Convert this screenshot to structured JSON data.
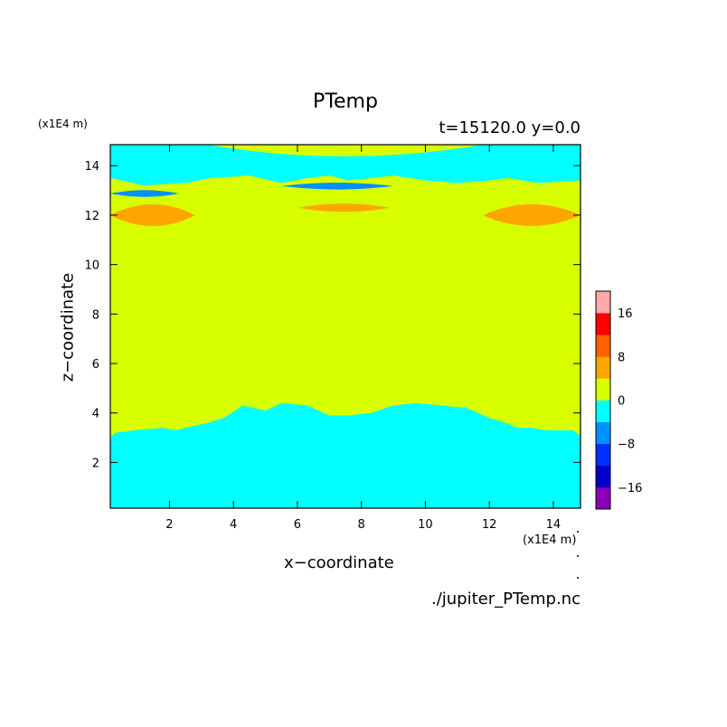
{
  "header": {
    "title": "PTemp",
    "subtitle": "t=15120.0 y=0.0",
    "source": "./jupiter_PTemp.nc"
  },
  "axes": {
    "xlabel": "x−coordinate",
    "ylabel": "z−coordinate",
    "xunit": "(x1E4 m)",
    "yunit": "(x1E4 m)"
  },
  "chart_data": {
    "type": "heatmap",
    "title": "PTemp",
    "subtitle": "t=15120.0 y=0.0",
    "xlabel": "x−coordinate",
    "ylabel": "z−coordinate",
    "xlim": [
      0.15,
      14.85
    ],
    "ylim": [
      0.15,
      14.85
    ],
    "xticks": [
      2,
      4,
      6,
      8,
      10,
      12,
      14
    ],
    "yticks": [
      2,
      4,
      6,
      8,
      10,
      12,
      14
    ],
    "colorbar": {
      "levels": [
        -20,
        -16,
        -12,
        -8,
        -4,
        0,
        4,
        8,
        12,
        16,
        20
      ],
      "tick_labels": [
        "-16",
        "-8",
        "0",
        "8",
        "16"
      ],
      "tick_values": [
        -16,
        -8,
        0,
        8,
        16
      ],
      "colors": [
        "#8a00b8",
        "#0000c8",
        "#0030ff",
        "#0090ff",
        "#00ffff",
        "#d8ff00",
        "#ffa500",
        "#ff6000",
        "#ff0000",
        "#ffa8a8"
      ]
    },
    "regions": [
      {
        "name": "lower-cyan",
        "level": -4,
        "x": [
          0.15,
          0.3,
          0.9,
          1.8,
          2.2,
          2.5,
          3.2,
          3.7,
          4.3,
          5.0,
          5.5,
          6.3,
          7.0,
          7.6,
          8.3,
          9.0,
          9.7,
          10.5,
          11.3,
          12.0,
          12.5,
          12.9,
          13.3,
          13.8,
          14.6,
          14.85
        ],
        "y": [
          3.0,
          3.2,
          3.3,
          3.4,
          3.3,
          3.4,
          3.6,
          3.8,
          4.3,
          4.1,
          4.4,
          4.3,
          3.9,
          3.9,
          4.0,
          4.3,
          4.4,
          4.3,
          4.2,
          3.8,
          3.6,
          3.4,
          3.4,
          3.3,
          3.3,
          3.1
        ]
      },
      {
        "name": "upper-cyan",
        "level": -4,
        "x": [
          0.15,
          1.2,
          2.5,
          3.3,
          4.5,
          5.5,
          6.3,
          7.0,
          7.6,
          8.3,
          9.0,
          10.0,
          11.0,
          12.0,
          12.6,
          13.5,
          14.85
        ],
        "y": [
          13.5,
          13.2,
          13.3,
          13.5,
          13.6,
          13.3,
          13.5,
          13.6,
          13.4,
          13.5,
          13.6,
          13.4,
          13.3,
          13.4,
          13.5,
          13.3,
          13.4
        ]
      },
      {
        "name": "blue-band-left",
        "level": -8,
        "x": [
          0.15,
          2.3
        ],
        "y": [
          12.75,
          13.0
        ]
      },
      {
        "name": "blue-band-center",
        "level": -8,
        "x": [
          5.5,
          9.0
        ],
        "y": [
          13.05,
          13.3
        ]
      },
      {
        "name": "orange-left",
        "level": 4,
        "x": [
          0.15,
          2.8
        ],
        "y": [
          11.6,
          12.4
        ]
      },
      {
        "name": "orange-center",
        "level": 4,
        "x": [
          6.0,
          8.9
        ],
        "y": [
          12.15,
          12.45
        ]
      },
      {
        "name": "orange-right",
        "level": 4,
        "x": [
          11.8,
          14.85
        ],
        "y": [
          11.6,
          12.4
        ]
      }
    ]
  }
}
